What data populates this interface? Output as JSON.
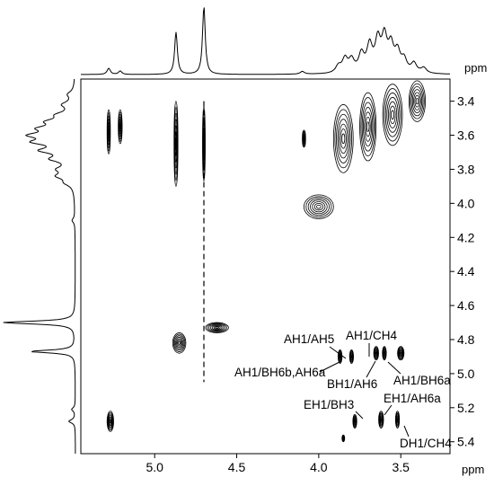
{
  "chart_data": {
    "type": "2D NMR contour plot",
    "x_axis": {
      "unit_label": "ppm",
      "range": [
        5.45,
        3.2
      ],
      "ticks": [
        "5.0",
        "4.5",
        "4.0",
        "3.5"
      ]
    },
    "y_axis": {
      "unit_label": "ppm",
      "range": [
        3.27,
        5.47
      ],
      "ticks": [
        "3.4",
        "3.6",
        "3.8",
        "4.0",
        "4.2",
        "4.4",
        "4.6",
        "4.8",
        "5.0",
        "5.2",
        "5.4"
      ]
    },
    "projection_peaks_1d": [
      {
        "shift": 4.7,
        "height": 1.0,
        "width": 0.01
      },
      {
        "shift": 4.87,
        "height": 0.62,
        "width": 0.01
      },
      {
        "shift": 5.28,
        "height": 0.09,
        "width": 0.012
      },
      {
        "shift": 5.21,
        "height": 0.05,
        "width": 0.012
      },
      {
        "shift": 4.1,
        "height": 0.04,
        "width": 0.015
      },
      {
        "shift": 3.88,
        "height": 0.1,
        "width": 0.02
      },
      {
        "shift": 3.84,
        "height": 0.2,
        "width": 0.02
      },
      {
        "shift": 3.8,
        "height": 0.18,
        "width": 0.02
      },
      {
        "shift": 3.74,
        "height": 0.26,
        "width": 0.02
      },
      {
        "shift": 3.69,
        "height": 0.38,
        "width": 0.02
      },
      {
        "shift": 3.64,
        "height": 0.44,
        "width": 0.02
      },
      {
        "shift": 3.6,
        "height": 0.48,
        "width": 0.02
      },
      {
        "shift": 3.56,
        "height": 0.36,
        "width": 0.02
      },
      {
        "shift": 3.52,
        "height": 0.28,
        "width": 0.02
      },
      {
        "shift": 3.48,
        "height": 0.18,
        "width": 0.02
      },
      {
        "shift": 3.42,
        "height": 0.14,
        "width": 0.02
      },
      {
        "shift": 3.36,
        "height": 0.08,
        "width": 0.02
      }
    ],
    "cross_peaks": [
      {
        "x": 5.28,
        "y": 3.58,
        "sx": 0.01,
        "sy": 0.13
      },
      {
        "x": 5.21,
        "y": 3.55,
        "sx": 0.012,
        "sy": 0.1
      },
      {
        "x": 4.87,
        "y": 3.65,
        "sx": 0.012,
        "sy": 0.25
      },
      {
        "x": 4.7,
        "y": 3.65,
        "sx": 0.005,
        "sy": 0.22
      },
      {
        "x": 4.09,
        "y": 3.62,
        "sx": 0.01,
        "sy": 0.05
      },
      {
        "x": 3.85,
        "y": 3.62,
        "sx": 0.06,
        "sy": 0.2
      },
      {
        "x": 3.7,
        "y": 3.55,
        "sx": 0.05,
        "sy": 0.2
      },
      {
        "x": 3.55,
        "y": 3.48,
        "sx": 0.06,
        "sy": 0.18
      },
      {
        "x": 3.4,
        "y": 3.4,
        "sx": 0.05,
        "sy": 0.12
      },
      {
        "x": 4.0,
        "y": 4.02,
        "sx": 0.09,
        "sy": 0.07
      },
      {
        "x": 3.87,
        "y": 4.9,
        "sx": 0.012,
        "sy": 0.04
      },
      {
        "x": 3.8,
        "y": 4.9,
        "sx": 0.012,
        "sy": 0.04
      },
      {
        "x": 3.65,
        "y": 4.88,
        "sx": 0.015,
        "sy": 0.04
      },
      {
        "x": 3.6,
        "y": 4.88,
        "sx": 0.012,
        "sy": 0.04
      },
      {
        "x": 3.5,
        "y": 4.88,
        "sx": 0.02,
        "sy": 0.04
      },
      {
        "x": 3.78,
        "y": 5.28,
        "sx": 0.012,
        "sy": 0.04
      },
      {
        "x": 3.62,
        "y": 5.27,
        "sx": 0.015,
        "sy": 0.05
      },
      {
        "x": 3.52,
        "y": 5.27,
        "sx": 0.012,
        "sy": 0.05
      },
      {
        "x": 5.27,
        "y": 5.28,
        "sx": 0.02,
        "sy": 0.06
      },
      {
        "x": 4.85,
        "y": 4.82,
        "sx": 0.04,
        "sy": 0.06
      },
      {
        "x": 4.62,
        "y": 4.73,
        "sx": 0.07,
        "sy": 0.03
      },
      {
        "x": 3.85,
        "y": 5.38,
        "sx": 0.004,
        "sy": 0.02
      }
    ],
    "annotations": [
      {
        "text": "AH1/AH5"
      },
      {
        "text": "AH1/CH4"
      },
      {
        "text": "AH1/BH6b,AH6a"
      },
      {
        "text": "BH1/AH6"
      },
      {
        "text": "AH1/BH6a"
      },
      {
        "text": "EH1/AH6a"
      },
      {
        "text": "EH1/BH3"
      },
      {
        "text": "DH1/CH4"
      }
    ]
  }
}
